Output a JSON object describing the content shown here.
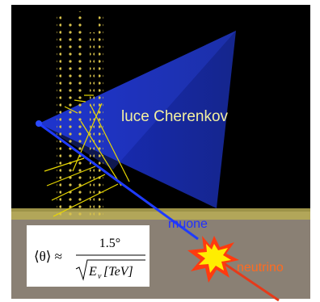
{
  "labels": {
    "light": "luce Cherenkov",
    "muon": "muone",
    "neutrino": "neutrino"
  },
  "formula": {
    "lhs": "⟨θ⟩ ≈",
    "numerator": "1.5°",
    "energy": "E",
    "subscript": "ν",
    "unit": "[TeV]"
  }
}
